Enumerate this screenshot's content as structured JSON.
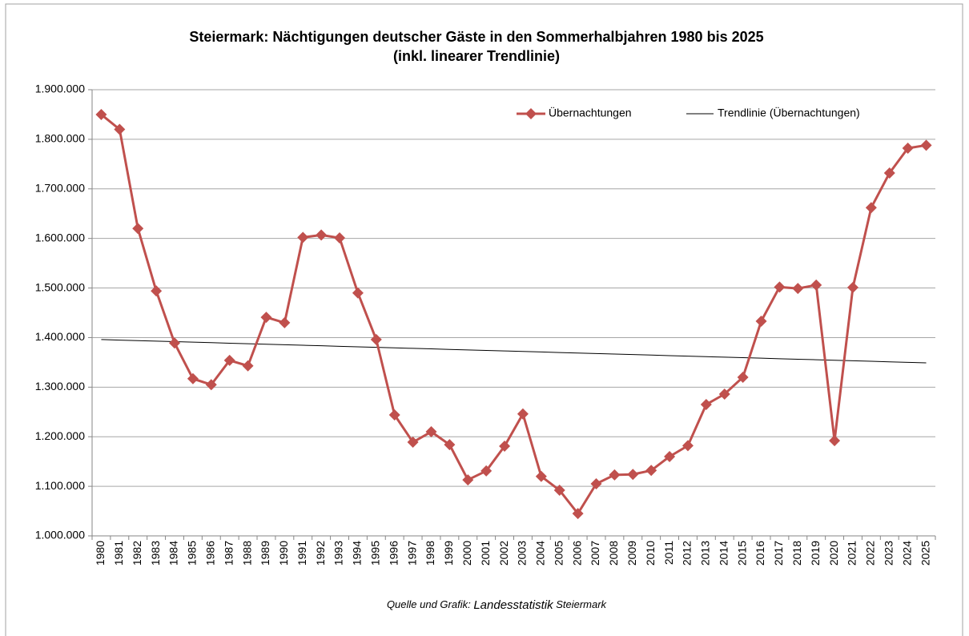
{
  "chart_data": {
    "type": "line",
    "title": [
      "Steiermark: Nächtigungen deutscher Gäste in den Sommerhalbjahren 1980 bis 2025",
      "(inkl. linearer Trendlinie)"
    ],
    "source": [
      "Quelle und Grafik:",
      "Landesstatistik",
      "Steiermark"
    ],
    "categories": [
      "1980",
      "1981",
      "1982",
      "1983",
      "1984",
      "1985",
      "1986",
      "1987",
      "1988",
      "1989",
      "1990",
      "1991",
      "1992",
      "1993",
      "1994",
      "1995",
      "1996",
      "1997",
      "1998",
      "1999",
      "2000",
      "2001",
      "2002",
      "2003",
      "2004",
      "2005",
      "2006",
      "2007",
      "2008",
      "2009",
      "2010",
      "2011",
      "2012",
      "2013",
      "2014",
      "2015",
      "2016",
      "2017",
      "2018",
      "2019",
      "2020",
      "2021",
      "2022",
      "2023",
      "2024",
      "2025"
    ],
    "series": [
      {
        "name": "Übernachtungen",
        "color": "#c0504d",
        "marker": "diamond",
        "values": [
          1850000,
          1820000,
          1620000,
          1494000,
          1389000,
          1317000,
          1305000,
          1354000,
          1343000,
          1441000,
          1430000,
          1602000,
          1607000,
          1601000,
          1490000,
          1396000,
          1244000,
          1189000,
          1210000,
          1184000,
          1113000,
          1131000,
          1181000,
          1246000,
          1120000,
          1092000,
          1045000,
          1105000,
          1123000,
          1124000,
          1132000,
          1160000,
          1182000,
          1265000,
          1286000,
          1320000,
          1433000,
          1502000,
          1499000,
          1506000,
          1192000,
          1501000,
          1662000,
          1732000,
          1782000,
          1788000
        ]
      },
      {
        "name": "Trendlinie (Übernachtungen)",
        "color": "#000000",
        "marker": "none",
        "values": [
          1396000,
          1394956,
          1393912,
          1392868,
          1391824,
          1390780,
          1389736,
          1388692,
          1387648,
          1386604,
          1385560,
          1384516,
          1383472,
          1382428,
          1381384,
          1380340,
          1379296,
          1378252,
          1377208,
          1376164,
          1375120,
          1374076,
          1373032,
          1371988,
          1370944,
          1369900,
          1368856,
          1367812,
          1366768,
          1365724,
          1364680,
          1363636,
          1362592,
          1361548,
          1360504,
          1359460,
          1358416,
          1357372,
          1356328,
          1355284,
          1354240,
          1353196,
          1352152,
          1351108,
          1350064,
          1349020
        ]
      }
    ],
    "ylim": [
      1000000,
      1900000
    ],
    "yticks": [
      {
        "value": 1000000,
        "label": "1.000.000"
      },
      {
        "value": 1100000,
        "label": "1.100.000"
      },
      {
        "value": 1200000,
        "label": "1.200.000"
      },
      {
        "value": 1300000,
        "label": "1.300.000"
      },
      {
        "value": 1400000,
        "label": "1.400.000"
      },
      {
        "value": 1500000,
        "label": "1.500.000"
      },
      {
        "value": 1600000,
        "label": "1.600.000"
      },
      {
        "value": 1700000,
        "label": "1.700.000"
      },
      {
        "value": 1800000,
        "label": "1.800.000"
      },
      {
        "value": 1900000,
        "label": "1.900.000"
      }
    ],
    "grid": true,
    "legend": "top-right"
  }
}
